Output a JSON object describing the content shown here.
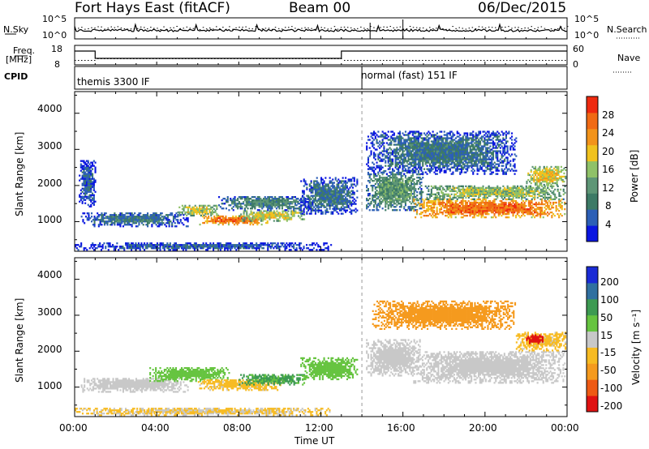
{
  "header": {
    "station": "Fort Hays East (fitACF)",
    "beam": "Beam 00",
    "date": "06/Dec/2015"
  },
  "noise_panel": {
    "left_label": "N.Sky",
    "right_label": "N.Search",
    "left_ticks": [
      "10^5",
      "10^0"
    ],
    "right_ticks": [
      "10^5",
      "10^0"
    ]
  },
  "freq_panel": {
    "left_label_top": "Freq.",
    "left_label_unit": "[MHz]",
    "left_ticks": [
      "18",
      "8"
    ],
    "right_label": "Nave",
    "right_ticks": [
      "60",
      "0"
    ]
  },
  "cpid_panel": {
    "label": "CPID",
    "modes": [
      {
        "name": "themis 3300 IF",
        "start_hour": 0
      },
      {
        "name": "normal (fast) 151 IF",
        "start_hour": 14
      }
    ]
  },
  "chart_data": [
    {
      "type": "heatmap",
      "name": "power",
      "ylabel": "Slant Range [km]",
      "ylim": [
        180,
        4600
      ],
      "yticks": [
        "4000",
        "3000",
        "2000",
        "1000"
      ],
      "xlim": [
        0,
        24
      ],
      "colorbar": {
        "label": "Power [dB]",
        "ticks": [
          "28",
          "24",
          "20",
          "16",
          "12",
          "8",
          "4"
        ],
        "range": [
          0,
          32
        ],
        "colors": [
          "#0a16e0",
          "#2c5fb6",
          "#3d7a66",
          "#5e9676",
          "#8fc168",
          "#f0c21e",
          "#f2931a",
          "#f06a14",
          "#ee2a10"
        ]
      },
      "echo_regions": [
        {
          "t0": 0.3,
          "t1": 5.5,
          "r0": 850,
          "r1": 1250,
          "p": 8
        },
        {
          "t0": 5.0,
          "t1": 7.0,
          "r0": 1150,
          "r1": 1450,
          "p": 18
        },
        {
          "t0": 6.0,
          "t1": 9.5,
          "r0": 900,
          "r1": 1150,
          "p": 26
        },
        {
          "t0": 8.0,
          "t1": 11.2,
          "r0": 1000,
          "r1": 1300,
          "p": 18
        },
        {
          "t0": 7.0,
          "t1": 11.5,
          "r0": 1300,
          "r1": 1700,
          "p": 10
        },
        {
          "t0": 11.0,
          "t1": 13.8,
          "r0": 1200,
          "r1": 2200,
          "p": 8
        },
        {
          "t0": 14.2,
          "t1": 17.0,
          "r0": 1300,
          "r1": 2400,
          "p": 12
        },
        {
          "t0": 16.5,
          "t1": 23.9,
          "r0": 1100,
          "r1": 1600,
          "p": 26
        },
        {
          "t0": 17.0,
          "t1": 23.9,
          "r0": 1600,
          "r1": 2000,
          "p": 16
        },
        {
          "t0": 22.0,
          "t1": 23.9,
          "r0": 2000,
          "r1": 2500,
          "p": 20
        },
        {
          "t0": 0.0,
          "t1": 12.5,
          "r0": 200,
          "r1": 400,
          "p": 6
        },
        {
          "t0": 0.2,
          "t1": 1.0,
          "r0": 1400,
          "r1": 2700,
          "p": 6
        },
        {
          "t0": 14.2,
          "t1": 21.5,
          "r0": 2300,
          "r1": 3500,
          "p": 8
        }
      ]
    },
    {
      "type": "heatmap",
      "name": "velocity",
      "ylabel": "Slant Range [km]",
      "ylim": [
        180,
        4600
      ],
      "yticks": [
        "4000",
        "3000",
        "2000",
        "1000"
      ],
      "xlabel": "Time UT",
      "xticks": [
        "00:00",
        "04:00",
        "08:00",
        "12:00",
        "16:00",
        "20:00",
        "00:00"
      ],
      "xlim": [
        0,
        24
      ],
      "colorbar": {
        "label": "Velocity [m s⁻¹]",
        "ticks": [
          "200",
          "100",
          "50",
          "15",
          "-15",
          "-50",
          "-100",
          "-200"
        ],
        "range": [
          -250,
          250
        ],
        "colors": [
          "#e01212",
          "#ee5a14",
          "#f59a1e",
          "#f7bb22",
          "#c8c8c8",
          "#66c440",
          "#3d9a52",
          "#3070a0",
          "#1a2bd6"
        ]
      },
      "echo_regions": [
        {
          "t0": 0.3,
          "t1": 5.5,
          "r0": 850,
          "r1": 1250,
          "v": 0
        },
        {
          "t0": 3.5,
          "t1": 7.5,
          "r0": 1150,
          "r1": 1550,
          "v": 45
        },
        {
          "t0": 6.0,
          "t1": 10.0,
          "r0": 900,
          "r1": 1200,
          "v": -40
        },
        {
          "t0": 8.0,
          "t1": 11.2,
          "r0": 1050,
          "r1": 1350,
          "v": 90
        },
        {
          "t0": 11.0,
          "t1": 13.8,
          "r0": 1200,
          "r1": 1800,
          "v": 45
        },
        {
          "t0": 14.2,
          "t1": 16.8,
          "r0": 1300,
          "r1": 2300,
          "v": 0
        },
        {
          "t0": 16.5,
          "t1": 23.9,
          "r0": 1100,
          "r1": 2000,
          "v": 0
        },
        {
          "t0": 21.5,
          "t1": 23.9,
          "r0": 2000,
          "r1": 2500,
          "v": -40
        },
        {
          "t0": 22.0,
          "t1": 22.8,
          "r0": 2200,
          "r1": 2450,
          "v": -220
        },
        {
          "t0": 0.0,
          "t1": 12.5,
          "r0": 200,
          "r1": 400,
          "v": -30
        },
        {
          "t0": 14.5,
          "t1": 21.5,
          "r0": 2600,
          "r1": 3400,
          "v": -120
        }
      ]
    }
  ]
}
